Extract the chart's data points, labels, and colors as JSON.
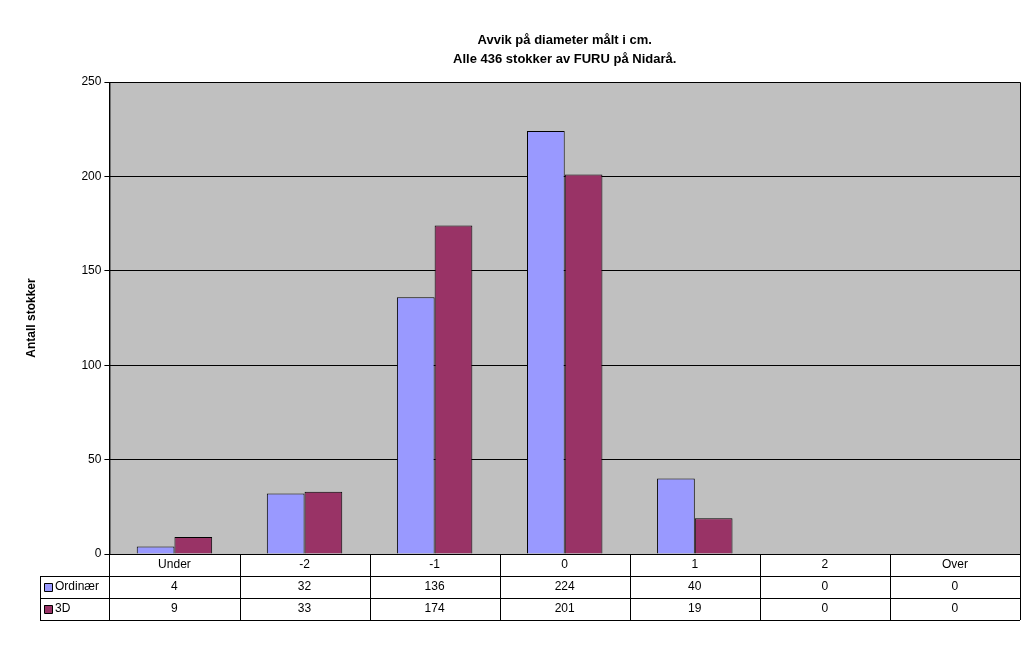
{
  "chart_data": {
    "type": "bar",
    "title": "Avvik på diameter målt i cm.",
    "subtitle": "Alle 436 stokker av FURU på Nidarå.",
    "ylabel": "Antall stokker",
    "categories": [
      "Under",
      "-2",
      "-1",
      "0",
      "1",
      "2",
      "Over"
    ],
    "series": [
      {
        "name": "Ordinær",
        "color": "#9999ff",
        "values": [
          4,
          32,
          136,
          224,
          40,
          0,
          0
        ]
      },
      {
        "name": "3D",
        "color": "#993366",
        "values": [
          9,
          33,
          174,
          201,
          19,
          0,
          0
        ]
      }
    ],
    "ylim": [
      0,
      250
    ],
    "yticks": [
      0,
      50,
      100,
      150,
      200,
      250
    ],
    "grid": "y",
    "legend": "bottom left",
    "data_labels": true
  }
}
